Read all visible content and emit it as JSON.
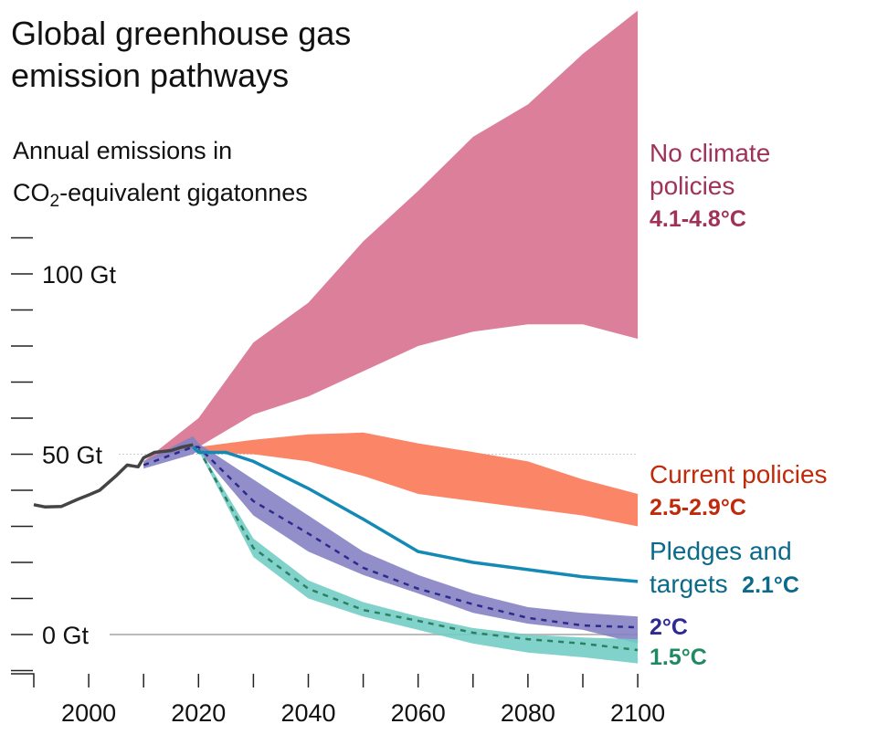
{
  "title_lines": [
    "Global greenhouse gas",
    "emission pathways"
  ],
  "ylabel": {
    "line1": "Annual emissions in",
    "co": "CO",
    "sub": "2",
    "rest": "-equivalent gigatonnes"
  },
  "chart_data": {
    "type": "area",
    "title": "Global greenhouse gas emission pathways",
    "ylabel": "Annual emissions in CO2-equivalent gigatonnes",
    "xlim": [
      1990,
      2100
    ],
    "ylim": [
      -10,
      115
    ],
    "x_ticks": [
      2000,
      2020,
      2040,
      2060,
      2080,
      2100
    ],
    "x_tick_labels": [
      "2000",
      "2020",
      "2040",
      "2060",
      "2080",
      "2100"
    ],
    "y_ticks": [
      -10,
      0,
      10,
      20,
      30,
      40,
      50,
      60,
      70,
      80,
      90,
      100,
      110
    ],
    "y_tick_labels": {
      "0": "0 Gt",
      "50": "50 Gt",
      "100": "100 Gt"
    },
    "grid": false,
    "historical": {
      "x": [
        1990,
        1992,
        1995,
        1998,
        2000,
        2002,
        2005,
        2007,
        2009,
        2010,
        2012,
        2015,
        2017,
        2019
      ],
      "y": [
        36,
        35.4,
        35.5,
        37.5,
        38.7,
        40,
        44,
        47,
        46.5,
        49,
        50.5,
        51,
        52,
        52.6
      ],
      "color": "#444444"
    },
    "series": [
      {
        "name": "No climate policies",
        "range": "4.1-4.8°C",
        "color": "#dc7f9b",
        "label_color": "#a0325a",
        "x": [
          2010,
          2020,
          2030,
          2040,
          2050,
          2060,
          2070,
          2080,
          2090,
          2100
        ],
        "upper": [
          48,
          60,
          81,
          92,
          109,
          123,
          138,
          147,
          161,
          173
        ],
        "lower": [
          48,
          52,
          61,
          66,
          73,
          80,
          84,
          86,
          86,
          82
        ]
      },
      {
        "name": "Current policies",
        "range": "2.5-2.9°C",
        "color": "#fb8567",
        "label_color": "#c02a0a",
        "x": [
          2020,
          2030,
          2040,
          2050,
          2060,
          2070,
          2080,
          2090,
          2100
        ],
        "upper": [
          52,
          54,
          55.5,
          56,
          53,
          50.6,
          48,
          43,
          39
        ],
        "lower": [
          50.5,
          50,
          48,
          44,
          39,
          37,
          35,
          33,
          30
        ]
      },
      {
        "name": "Pledges and targets",
        "range": "2.1°C",
        "color": "#1589b5",
        "label_color": "#0b6a8c",
        "x": [
          2019,
          2020,
          2025,
          2030,
          2040,
          2050,
          2060,
          2070,
          2080,
          2090,
          2100
        ],
        "y": [
          52,
          50.5,
          50.5,
          48,
          40.5,
          32,
          23,
          20,
          18,
          16,
          14.7
        ]
      },
      {
        "name": "2°C",
        "range": "",
        "color": "#8582c4",
        "line_color": "#2e2a8c",
        "label_color": "#2e2a94",
        "x": [
          2010,
          2019,
          2020,
          2030,
          2040,
          2050,
          2060,
          2070,
          2080,
          2090,
          2100
        ],
        "upper": [
          48,
          55,
          53,
          43,
          33,
          23,
          16.5,
          11.4,
          7.6,
          6,
          5
        ],
        "lower": [
          46,
          50,
          51,
          33,
          23,
          16.5,
          11.4,
          6,
          3,
          1.3,
          -2.5
        ],
        "median": [
          47,
          52,
          52,
          37,
          28,
          18.5,
          12.7,
          8.4,
          4.6,
          2.5,
          2
        ]
      },
      {
        "name": "1.5°C",
        "range": "",
        "color": "#72cdc4",
        "line_color": "#2e7f62",
        "label_color": "#1f8a62",
        "x": [
          2020,
          2030,
          2040,
          2050,
          2060,
          2070,
          2080,
          2090,
          2100
        ],
        "upper": [
          52,
          26.6,
          15,
          9,
          5,
          1.8,
          0,
          -0.8,
          -1.3
        ],
        "lower": [
          51,
          21.5,
          10,
          5,
          1.3,
          -2.5,
          -5,
          -6.3,
          -8
        ],
        "median": [
          51.5,
          24,
          12.7,
          6.8,
          3.8,
          0.5,
          -1.3,
          -2.5,
          -4.3
        ]
      }
    ]
  },
  "labels": {
    "no_policy": [
      "No climate",
      "policies"
    ],
    "no_policy_range": "4.1-4.8°C",
    "current": "Current policies",
    "current_range": "2.5-2.9°C",
    "pledges": [
      "Pledges and",
      "targets"
    ],
    "pledges_range": "2.1°C",
    "two": "2°C",
    "onefive": "1.5°C"
  }
}
